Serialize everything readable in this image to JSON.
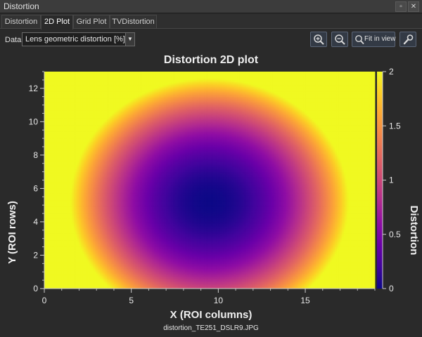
{
  "window": {
    "title": "Distortion"
  },
  "tabs": [
    "Distortion",
    "2D Plot",
    "Grid Plot",
    "TVDistortion"
  ],
  "active_tab": "2D Plot",
  "data_selector": {
    "label": "Data",
    "value": "Lens geometric distortion [%]"
  },
  "toolbar": {
    "fit_label": "Fit in view"
  },
  "icons": [
    "float-icon",
    "close-icon",
    "zoom-in-icon",
    "zoom-out-icon",
    "fit-view-icon",
    "settings-wrench-icon",
    "dropdown-arrow-icon"
  ],
  "chart_data": {
    "type": "heatmap",
    "title": "Distortion 2D plot",
    "xlabel": "X (ROI columns)",
    "ylabel": "Y (ROI rows)",
    "colorbar_label": "Distortion",
    "xlim": [
      0,
      19
    ],
    "ylim": [
      0,
      13
    ],
    "x_ticks": [
      0,
      5,
      10,
      15
    ],
    "y_ticks": [
      0,
      2,
      4,
      6,
      8,
      10,
      12
    ],
    "colorbar_ticks": [
      0,
      0.5,
      1,
      1.5,
      2
    ],
    "color_range": [
      0,
      2
    ],
    "colormap": "plasma",
    "minimum_location": [
      9.5,
      5.2
    ],
    "pattern": "distortion near 0 at image center, increasing radially to about 2 at edges and corners",
    "caption": "distortion_TE251_DSLR9.JPG"
  },
  "colors": {
    "background": "#2a2a2a",
    "plasma_stops": [
      "#0d0887",
      "#41049d",
      "#6a00a8",
      "#8f0da4",
      "#b12a90",
      "#cc4778",
      "#e16462",
      "#f2844b",
      "#fca636",
      "#fcce25",
      "#f0f921"
    ]
  }
}
